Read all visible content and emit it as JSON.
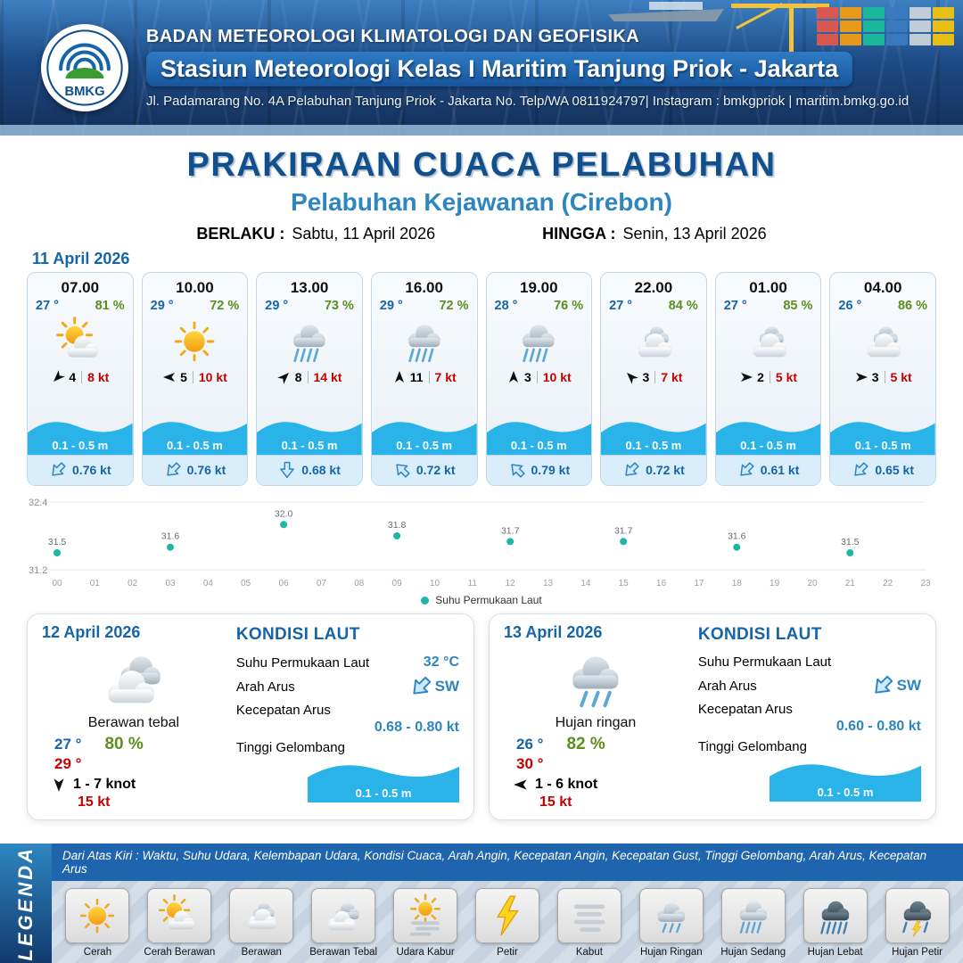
{
  "header": {
    "logo_text": "BMKG",
    "agency": "BADAN METEOROLOGI KLIMATOLOGI DAN GEOFISIKA",
    "station": "Stasiun Meteorologi Kelas I Maritim Tanjung Priok - Jakarta",
    "address": "Jl. Padamarang No. 4A Pelabuhan Tanjung Priok - Jakarta No. Telp/WA 0811924797| Instagram : bmkgpriok | maritim.bmkg.go.id"
  },
  "title": {
    "main": "PRAKIRAAN CUACA PELABUHAN",
    "port": "Pelabuhan Kejawanan (Cirebon)",
    "berlaku_label": "BERLAKU :",
    "berlaku_value": "Sabtu, 11 April 2026",
    "hingga_label": "HINGGA :",
    "hingga_value": "Senin, 13 April 2026"
  },
  "forecast_date": "11 April 2026",
  "forecast_cards": [
    {
      "time": "07.00",
      "temp": "27 °",
      "rh": "81 %",
      "icon": "cerah-berawan",
      "wind_dir": "SW",
      "wind": "4",
      "gust": "8 kt",
      "wave": "0.1 - 0.5 m",
      "current_dir": "SW",
      "current": "0.76 kt"
    },
    {
      "time": "10.00",
      "temp": "29 °",
      "rh": "72 %",
      "icon": "cerah",
      "wind_dir": "W",
      "wind": "5",
      "gust": "10 kt",
      "wave": "0.1 - 0.5 m",
      "current_dir": "SW",
      "current": "0.76 kt"
    },
    {
      "time": "13.00",
      "temp": "29 °",
      "rh": "73 %",
      "icon": "hujan-sedang",
      "wind_dir": "NE",
      "wind": "8",
      "gust": "14 kt",
      "wave": "0.1 - 0.5 m",
      "current_dir": "S",
      "current": "0.68 kt"
    },
    {
      "time": "16.00",
      "temp": "29 °",
      "rh": "72 %",
      "icon": "hujan-sedang",
      "wind_dir": "N",
      "wind": "11",
      "gust": "7 kt",
      "wave": "0.1 - 0.5 m",
      "current_dir": "NW",
      "current": "0.72 kt"
    },
    {
      "time": "19.00",
      "temp": "28 °",
      "rh": "76 %",
      "icon": "hujan-sedang",
      "wind_dir": "N",
      "wind": "3",
      "gust": "10 kt",
      "wave": "0.1 - 0.5 m",
      "current_dir": "NW",
      "current": "0.79 kt"
    },
    {
      "time": "22.00",
      "temp": "27 °",
      "rh": "84 %",
      "icon": "berawan",
      "wind_dir": "NW",
      "wind": "3",
      "gust": "7 kt",
      "wave": "0.1 - 0.5 m",
      "current_dir": "SW",
      "current": "0.72 kt"
    },
    {
      "time": "01.00",
      "temp": "27 °",
      "rh": "85 %",
      "icon": "berawan",
      "wind_dir": "E",
      "wind": "2",
      "gust": "5 kt",
      "wave": "0.1 - 0.5 m",
      "current_dir": "SW",
      "current": "0.61 kt"
    },
    {
      "time": "04.00",
      "temp": "26 °",
      "rh": "86 %",
      "icon": "berawan",
      "wind_dir": "E",
      "wind": "3",
      "gust": "5 kt",
      "wave": "0.1 - 0.5 m",
      "current_dir": "SW",
      "current": "0.65 kt"
    }
  ],
  "chart_data": {
    "type": "scatter",
    "title": "",
    "x": [
      0,
      3,
      6,
      9,
      12,
      15,
      18,
      21
    ],
    "values": [
      31.5,
      31.6,
      32.0,
      31.8,
      31.7,
      31.7,
      31.6,
      31.5
    ],
    "x_ticks": [
      "00",
      "01",
      "02",
      "03",
      "04",
      "05",
      "06",
      "07",
      "08",
      "09",
      "10",
      "11",
      "12",
      "13",
      "14",
      "15",
      "16",
      "17",
      "18",
      "19",
      "20",
      "21",
      "22",
      "23"
    ],
    "ylim": [
      31.2,
      32.4
    ],
    "y_tick_labels": [
      "32.4",
      "31.2"
    ],
    "legend": "Suhu Permukaan Laut",
    "point_color": "#1fb6a6",
    "grid": true,
    "legend_position": "bottom-center"
  },
  "daily_cards": [
    {
      "date": "12 April 2026",
      "icon": "berawan-tebal",
      "condition": "Berawan tebal",
      "temp_min": "27 °",
      "temp_max": "29 °",
      "rh": "80 %",
      "wind_dir": "S",
      "wind_range": "1 - 7 knot",
      "gust": "15 kt",
      "sea": {
        "heading": "KONDISI LAUT",
        "sst_label": "Suhu Permukaan Laut",
        "sst_value": "32 °C",
        "arus_label": "Arah Arus",
        "arus_text": "SW",
        "arus_dir": "SW",
        "kec_label": "Kecepatan Arus",
        "kec_value": "0.68  - 0.80 kt",
        "gel_label": "Tinggi Gelombang",
        "gel_value": "0.1 - 0.5 m"
      }
    },
    {
      "date": "13 April 2026",
      "icon": "hujan-ringan",
      "condition": "Hujan ringan",
      "temp_min": "26 °",
      "temp_max": "30 °",
      "rh": "82 %",
      "wind_dir": "W",
      "wind_range": "1  - 6 knot",
      "gust": "15 kt",
      "sea": {
        "heading": "KONDISI LAUT",
        "sst_label": "Suhu Permukaan Laut",
        "sst_value": "",
        "arus_label": "Arah Arus",
        "arus_text": "SW",
        "arus_dir": "SW",
        "kec_label": "Kecepatan Arus",
        "kec_value": "0.60 - 0.80 kt",
        "gel_label": "Tinggi Gelombang",
        "gel_value": "0.1 - 0.5 m"
      }
    }
  ],
  "legend": {
    "title": "LEGENDA",
    "note": "Dari Atas Kiri : Waktu, Suhu Udara, Kelembapan Udara, Kondisi Cuaca, Arah Angin, Kecepatan Angin, Kecepatan Gust, Tinggi Gelombang, Arah Arus, Kecepatan Arus",
    "items": [
      {
        "label": "Cerah",
        "icon": "cerah"
      },
      {
        "label": "Cerah Berawan",
        "icon": "cerah-berawan"
      },
      {
        "label": "Berawan",
        "icon": "berawan"
      },
      {
        "label": "Berawan Tebal",
        "icon": "berawan-tebal"
      },
      {
        "label": "Udara Kabur",
        "icon": "udara-kabur"
      },
      {
        "label": "Petir",
        "icon": "petir"
      },
      {
        "label": "Kabut",
        "icon": "kabut"
      },
      {
        "label": "Hujan Ringan",
        "icon": "hujan-ringan"
      },
      {
        "label": "Hujan Sedang",
        "icon": "hujan-sedang"
      },
      {
        "label": "Hujan Lebat",
        "icon": "hujan-lebat"
      },
      {
        "label": "Hujan Petir",
        "icon": "hujan-petir"
      }
    ]
  },
  "colors": {
    "header_bg": "#16365f",
    "accent_blue": "#1565a8",
    "port_blue": "#2e86c1",
    "humidity_green": "#5a8f1e",
    "gust_red": "#c40000",
    "wave_blue": "#29b3e8",
    "sst_teal": "#1fb6a6"
  }
}
